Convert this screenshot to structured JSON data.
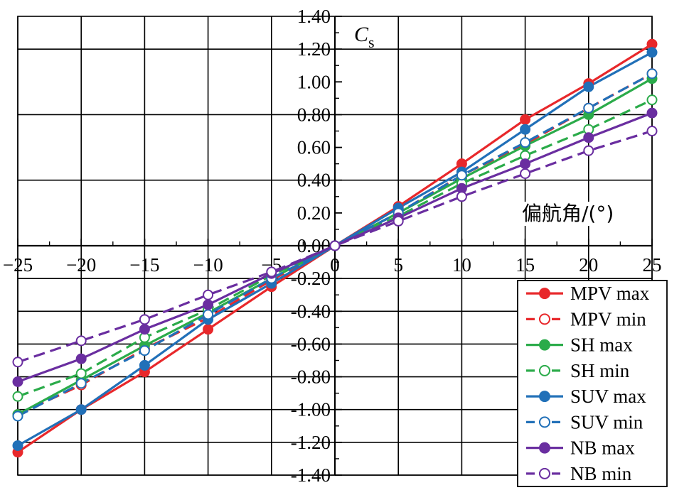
{
  "chart_data": {
    "type": "line",
    "title": "",
    "xlabel": "偏航角/(°)",
    "ylabel_main": "C",
    "ylabel_sub": "s",
    "x": [
      -25,
      -20,
      -15,
      -10,
      -5,
      0,
      5,
      10,
      15,
      20,
      25
    ],
    "xlim": [
      -25,
      25
    ],
    "ylim": [
      -1.4,
      1.4
    ],
    "x_ticks": [
      -25,
      -20,
      -15,
      -10,
      -5,
      0,
      5,
      10,
      15,
      20,
      25
    ],
    "x_tick_labels": [
      "−25",
      "−20",
      "−15",
      "−10",
      "−5",
      "0",
      "5",
      "10",
      "15",
      "20",
      "25"
    ],
    "y_ticks": [
      -1.4,
      -1.2,
      -1.0,
      -0.8,
      -0.6,
      -0.4,
      -0.2,
      0.0,
      0.2,
      0.4,
      0.6,
      0.8,
      1.0,
      1.2,
      1.4
    ],
    "y_tick_labels": [
      "-1.40",
      "-1.20",
      "-1.00",
      "-0.80",
      "-0.60",
      "-0.40",
      "-0.20",
      "0.00",
      "0.20",
      "0.40",
      "0.60",
      "0.80",
      "1.00",
      "1.20",
      "1.40"
    ],
    "grid": true,
    "legend_position": "bottom-right",
    "series": [
      {
        "name": "MPV max",
        "color": "#e8282b",
        "marker": "filled",
        "dash": false,
        "values": [
          -1.26,
          -1.0,
          -0.77,
          -0.51,
          -0.25,
          0.0,
          0.24,
          0.5,
          0.77,
          0.99,
          1.23
        ]
      },
      {
        "name": "MPV min",
        "color": "#e8282b",
        "marker": "open",
        "dash": true,
        "values": [
          -1.03,
          -0.85,
          -0.63,
          -0.44,
          -0.21,
          0.0,
          0.2,
          0.43,
          0.62,
          0.84,
          1.05
        ]
      },
      {
        "name": "SH max",
        "color": "#2bab4a",
        "marker": "filled",
        "dash": false,
        "values": [
          -1.03,
          -0.82,
          -0.61,
          -0.41,
          -0.2,
          0.0,
          0.2,
          0.41,
          0.61,
          0.8,
          1.02
        ]
      },
      {
        "name": "SH min",
        "color": "#2bab4a",
        "marker": "open",
        "dash": true,
        "values": [
          -0.92,
          -0.78,
          -0.56,
          -0.39,
          -0.18,
          0.0,
          0.18,
          0.38,
          0.55,
          0.71,
          0.89
        ]
      },
      {
        "name": "SUV max",
        "color": "#2170b8",
        "marker": "filled",
        "dash": false,
        "values": [
          -1.22,
          -1.0,
          -0.73,
          -0.45,
          -0.23,
          0.0,
          0.23,
          0.45,
          0.71,
          0.97,
          1.18
        ]
      },
      {
        "name": "SUV min",
        "color": "#2170b8",
        "marker": "open",
        "dash": true,
        "values": [
          -1.04,
          -0.84,
          -0.64,
          -0.42,
          -0.2,
          0.0,
          0.2,
          0.43,
          0.63,
          0.84,
          1.05
        ]
      },
      {
        "name": "NB max",
        "color": "#6a2ea0",
        "marker": "filled",
        "dash": false,
        "values": [
          -0.83,
          -0.69,
          -0.51,
          -0.36,
          -0.17,
          0.0,
          0.17,
          0.35,
          0.5,
          0.66,
          0.81
        ]
      },
      {
        "name": "NB min",
        "color": "#6a2ea0",
        "marker": "open",
        "dash": true,
        "values": [
          -0.71,
          -0.58,
          -0.45,
          -0.3,
          -0.16,
          0.0,
          0.15,
          0.3,
          0.44,
          0.58,
          0.7
        ]
      }
    ]
  }
}
